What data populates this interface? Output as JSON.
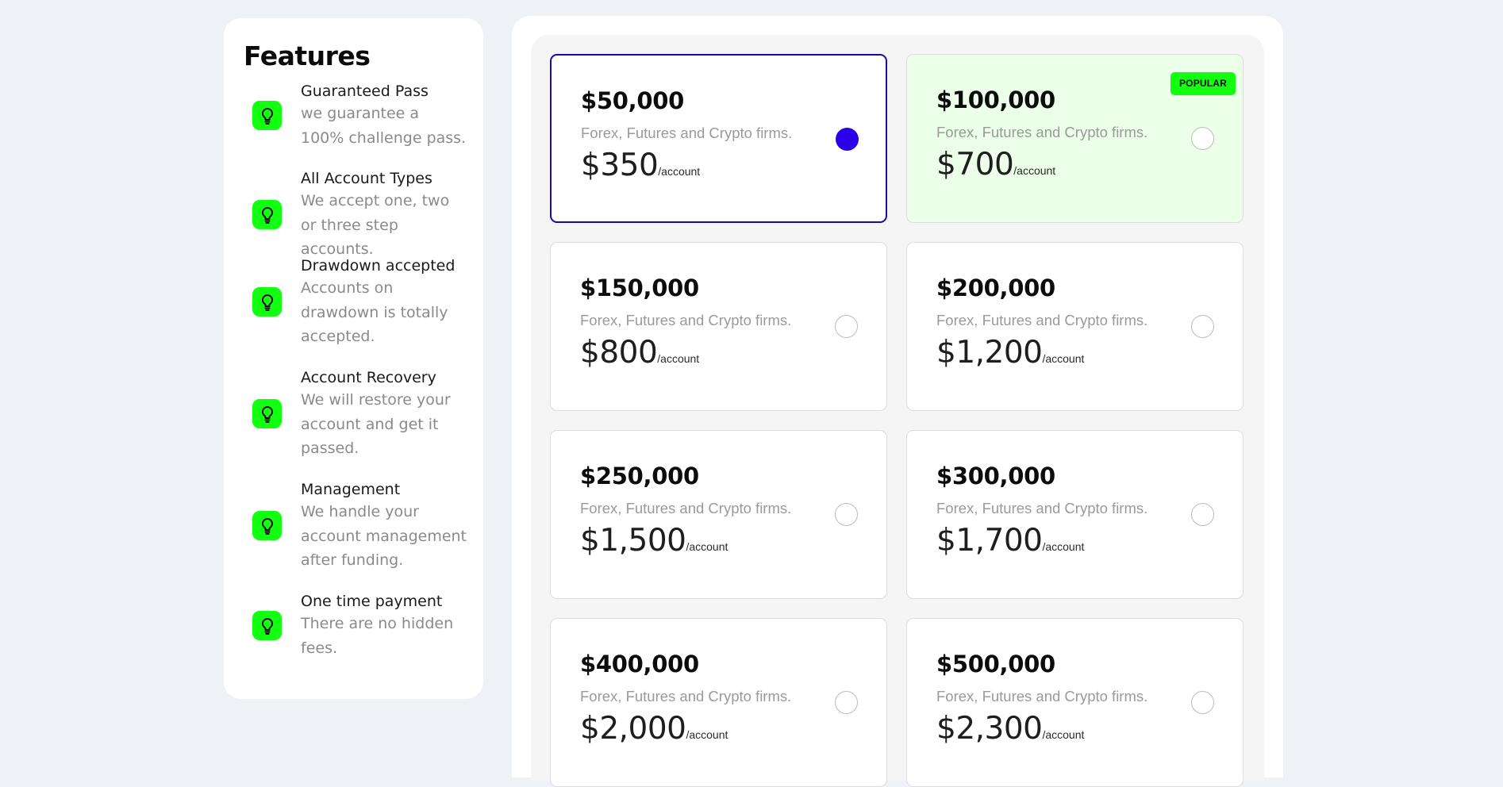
{
  "features": {
    "title": "Features",
    "items": [
      {
        "title": "Guaranteed Pass",
        "desc": "we guarantee a 100% challenge pass.",
        "icon": "lightbulb-icon"
      },
      {
        "title": "All Account Types",
        "desc": "We accept one, two or three step accounts.",
        "icon": "lightbulb-icon"
      },
      {
        "title": "Drawdown accepted",
        "desc": "Accounts on drawdown is totally accepted.",
        "icon": "lightbulb-icon"
      },
      {
        "title": "Account Recovery",
        "desc": "We will restore your account and get it passed.",
        "icon": "lightbulb-icon"
      },
      {
        "title": "Management",
        "desc": "We handle your account management after funding.",
        "icon": "lightbulb-icon"
      },
      {
        "title": "One time payment",
        "desc": "There are no hidden fees.",
        "icon": "lightbulb-icon"
      }
    ]
  },
  "plans": {
    "per_label": "/account",
    "items": [
      {
        "size": "$50,000",
        "desc": "Forex, Futures and Crypto firms.",
        "price": "$350",
        "selected": true
      },
      {
        "size": "$100,000",
        "desc": "Forex, Futures and Crypto firms.",
        "price": "$700",
        "badge": "POPULAR"
      },
      {
        "size": "$150,000",
        "desc": "Forex, Futures and Crypto firms.",
        "price": "$800"
      },
      {
        "size": "$200,000",
        "desc": "Forex, Futures and Crypto firms.",
        "price": "$1,200"
      },
      {
        "size": "$250,000",
        "desc": "Forex, Futures and Crypto firms.",
        "price": "$1,500"
      },
      {
        "size": "$300,000",
        "desc": "Forex, Futures and Crypto firms.",
        "price": "$1,700"
      },
      {
        "size": "$400,000",
        "desc": "Forex, Futures and Crypto firms.",
        "price": "$2,000"
      },
      {
        "size": "$500,000",
        "desc": "Forex, Futures and Crypto firms.",
        "price": "$2,300"
      }
    ]
  },
  "colors": {
    "accent_green": "#12ff12",
    "selected_border": "#1a0a9e",
    "radio_checked": "#2b00e8",
    "popular_bg": "#ebffe9",
    "page_bg": "#eef2f7"
  }
}
